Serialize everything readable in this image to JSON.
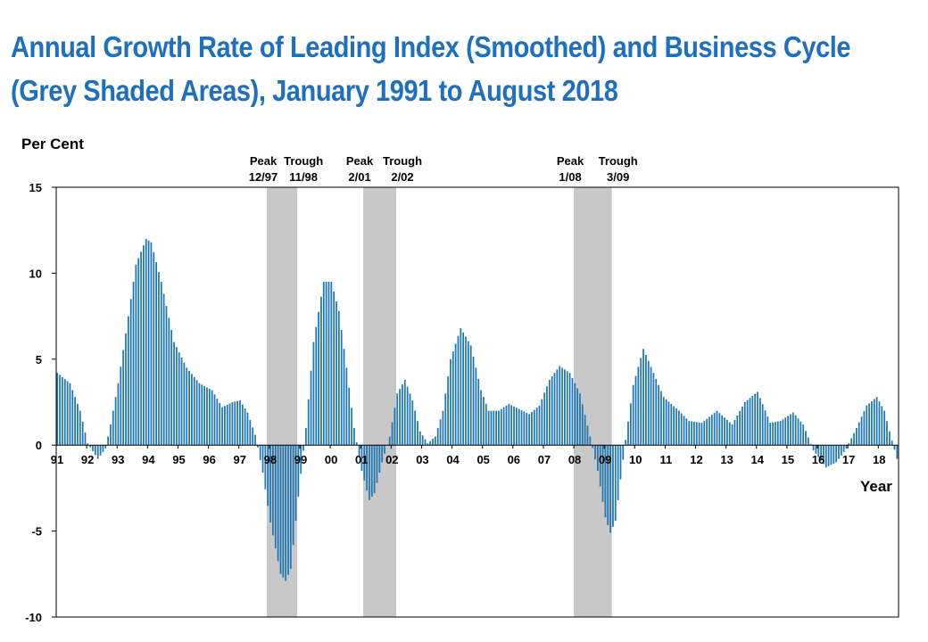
{
  "title_lines": [
    "Annual Growth Rate of Leading Index (Smoothed) and Business Cycle",
    "(Grey Shaded Areas), January 1991 to August 2018"
  ],
  "colors": {
    "title": "#1f6fbf",
    "bars": "#1f77b4",
    "shade": "#c8c8c8"
  },
  "chart_data": {
    "type": "bar",
    "ylabel": "Per Cent",
    "xlabel": "Year",
    "ylim": [
      -10,
      15
    ],
    "yticks": [
      -10,
      -5,
      0,
      5,
      10,
      15
    ],
    "x_tick_labels": [
      "91",
      "92",
      "93",
      "94",
      "95",
      "96",
      "97",
      "98",
      "99",
      "00",
      "01",
      "02",
      "03",
      "04",
      "05",
      "06",
      "07",
      "08",
      "09",
      "10",
      "11",
      "12",
      "13",
      "14",
      "15",
      "16",
      "17",
      "18"
    ],
    "start": "1991-01",
    "end": "2018-08",
    "frequency": "monthly",
    "keypoints": [
      {
        "date": "1991-01",
        "value": 4.2
      },
      {
        "date": "1991-06",
        "value": 3.6
      },
      {
        "date": "1991-10",
        "value": 2.0
      },
      {
        "date": "1992-01",
        "value": 0.1
      },
      {
        "date": "1992-05",
        "value": -0.8
      },
      {
        "date": "1992-08",
        "value": -0.2
      },
      {
        "date": "1992-10",
        "value": 1.2
      },
      {
        "date": "1993-01",
        "value": 3.6
      },
      {
        "date": "1993-04",
        "value": 6.5
      },
      {
        "date": "1993-08",
        "value": 10.5
      },
      {
        "date": "1993-12",
        "value": 12.0
      },
      {
        "date": "1994-02",
        "value": 11.8
      },
      {
        "date": "1994-06",
        "value": 9.5
      },
      {
        "date": "1994-11",
        "value": 6.0
      },
      {
        "date": "1995-04",
        "value": 4.5
      },
      {
        "date": "1995-09",
        "value": 3.6
      },
      {
        "date": "1996-02",
        "value": 3.2
      },
      {
        "date": "1996-06",
        "value": 2.2
      },
      {
        "date": "1996-10",
        "value": 2.5
      },
      {
        "date": "1997-01",
        "value": 2.6
      },
      {
        "date": "1997-04",
        "value": 1.9
      },
      {
        "date": "1997-07",
        "value": 0.6
      },
      {
        "date": "1997-10",
        "value": -1.6
      },
      {
        "date": "1998-01",
        "value": -4.5
      },
      {
        "date": "1998-05",
        "value": -7.5
      },
      {
        "date": "1998-07",
        "value": -7.9
      },
      {
        "date": "1998-09",
        "value": -7.2
      },
      {
        "date": "1998-12",
        "value": -3.0
      },
      {
        "date": "1999-03",
        "value": 1.0
      },
      {
        "date": "1999-06",
        "value": 6.0
      },
      {
        "date": "1999-10",
        "value": 9.5
      },
      {
        "date": "2000-01",
        "value": 9.5
      },
      {
        "date": "2000-04",
        "value": 7.8
      },
      {
        "date": "2000-07",
        "value": 4.5
      },
      {
        "date": "2000-10",
        "value": 1.0
      },
      {
        "date": "2001-01",
        "value": -1.5
      },
      {
        "date": "2001-04",
        "value": -3.2
      },
      {
        "date": "2001-06",
        "value": -2.8
      },
      {
        "date": "2001-09",
        "value": -1.0
      },
      {
        "date": "2001-12",
        "value": 0.5
      },
      {
        "date": "2002-03",
        "value": 3.0
      },
      {
        "date": "2002-06",
        "value": 3.8
      },
      {
        "date": "2002-09",
        "value": 2.6
      },
      {
        "date": "2002-12",
        "value": 0.8
      },
      {
        "date": "2003-03",
        "value": 0.1
      },
      {
        "date": "2003-06",
        "value": 0.5
      },
      {
        "date": "2003-09",
        "value": 2.0
      },
      {
        "date": "2003-12",
        "value": 5.0
      },
      {
        "date": "2004-04",
        "value": 6.8
      },
      {
        "date": "2004-08",
        "value": 5.8
      },
      {
        "date": "2004-12",
        "value": 3.2
      },
      {
        "date": "2005-03",
        "value": 2.0
      },
      {
        "date": "2005-07",
        "value": 2.0
      },
      {
        "date": "2005-11",
        "value": 2.4
      },
      {
        "date": "2006-03",
        "value": 2.1
      },
      {
        "date": "2006-07",
        "value": 1.8
      },
      {
        "date": "2006-11",
        "value": 2.3
      },
      {
        "date": "2007-03",
        "value": 3.8
      },
      {
        "date": "2007-07",
        "value": 4.6
      },
      {
        "date": "2007-11",
        "value": 4.2
      },
      {
        "date": "2008-03",
        "value": 3.0
      },
      {
        "date": "2008-07",
        "value": 0.5
      },
      {
        "date": "2008-10",
        "value": -1.5
      },
      {
        "date": "2009-01",
        "value": -4.2
      },
      {
        "date": "2009-03",
        "value": -5.1
      },
      {
        "date": "2009-05",
        "value": -4.4
      },
      {
        "date": "2009-07",
        "value": -2.0
      },
      {
        "date": "2009-09",
        "value": 0.3
      },
      {
        "date": "2009-12",
        "value": 3.5
      },
      {
        "date": "2010-04",
        "value": 5.6
      },
      {
        "date": "2010-08",
        "value": 4.2
      },
      {
        "date": "2010-12",
        "value": 2.8
      },
      {
        "date": "2011-06",
        "value": 2.0
      },
      {
        "date": "2011-10",
        "value": 1.4
      },
      {
        "date": "2012-03",
        "value": 1.3
      },
      {
        "date": "2012-09",
        "value": 2.0
      },
      {
        "date": "2013-03",
        "value": 1.2
      },
      {
        "date": "2013-08",
        "value": 2.5
      },
      {
        "date": "2014-01",
        "value": 3.1
      },
      {
        "date": "2014-06",
        "value": 1.3
      },
      {
        "date": "2014-10",
        "value": 1.4
      },
      {
        "date": "2015-03",
        "value": 1.9
      },
      {
        "date": "2015-07",
        "value": 1.2
      },
      {
        "date": "2015-11",
        "value": -0.3
      },
      {
        "date": "2016-04",
        "value": -1.3
      },
      {
        "date": "2016-08",
        "value": -1.0
      },
      {
        "date": "2016-12",
        "value": -0.2
      },
      {
        "date": "2017-04",
        "value": 1.0
      },
      {
        "date": "2017-08",
        "value": 2.3
      },
      {
        "date": "2017-12",
        "value": 2.8
      },
      {
        "date": "2018-03",
        "value": 2.0
      },
      {
        "date": "2018-05",
        "value": 0.8
      },
      {
        "date": "2018-08",
        "value": -0.8
      }
    ],
    "recession_shading": [
      {
        "start": "1997-12",
        "end": "1998-11",
        "peak_label": [
          "Peak",
          "12/97"
        ],
        "trough_label": [
          "Trough",
          "11/98"
        ]
      },
      {
        "start": "2001-02",
        "end": "2002-02",
        "peak_label": [
          "Peak",
          "2/01"
        ],
        "trough_label": [
          "Trough",
          "2/02"
        ]
      },
      {
        "start": "2008-01",
        "end": "2009-03",
        "peak_label": [
          "Peak",
          "1/08"
        ],
        "trough_label": [
          "Trough",
          "3/09"
        ]
      }
    ],
    "grid": false,
    "legend": "none"
  }
}
